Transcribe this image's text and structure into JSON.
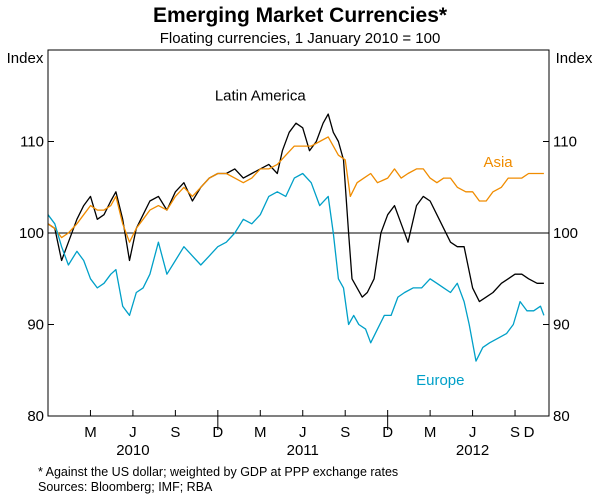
{
  "chart_data": {
    "type": "line",
    "title": "Emerging Market Currencies*",
    "subtitle": "Floating currencies, 1 January 2010 = 100",
    "ylabel_left": "Index",
    "ylabel_right": "Index",
    "ylim": [
      80,
      120
    ],
    "yticks": [
      80,
      90,
      100,
      110
    ],
    "reference_line": 100,
    "x_range": [
      2010.0,
      2012.95
    ],
    "month_ticks": [
      {
        "label": "M",
        "x": 2010.25
      },
      {
        "label": "J",
        "x": 2010.5
      },
      {
        "label": "S",
        "x": 2010.75
      },
      {
        "label": "D",
        "x": 2011.0
      },
      {
        "label": "M",
        "x": 2011.25
      },
      {
        "label": "J",
        "x": 2011.5
      },
      {
        "label": "S",
        "x": 2011.75
      },
      {
        "label": "D",
        "x": 2012.0
      },
      {
        "label": "M",
        "x": 2012.25
      },
      {
        "label": "J",
        "x": 2012.5
      },
      {
        "label": "S",
        "x": 2012.75
      },
      {
        "label": "D",
        "x": 2013.0
      }
    ],
    "year_labels": [
      {
        "label": "2010",
        "x": 2010.5
      },
      {
        "label": "2011",
        "x": 2011.5
      },
      {
        "label": "2012",
        "x": 2012.5
      }
    ],
    "series": [
      {
        "name": "Latin America",
        "color": "#000000",
        "x": [
          2010.0,
          2010.04,
          2010.08,
          2010.12,
          2010.17,
          2010.21,
          2010.25,
          2010.29,
          2010.33,
          2010.37,
          2010.4,
          2010.44,
          2010.48,
          2010.52,
          2010.56,
          2010.6,
          2010.65,
          2010.7,
          2010.75,
          2010.8,
          2010.85,
          2010.9,
          2010.95,
          2011.0,
          2011.05,
          2011.1,
          2011.15,
          2011.2,
          2011.25,
          2011.3,
          2011.35,
          2011.38,
          2011.42,
          2011.46,
          2011.5,
          2011.54,
          2011.58,
          2011.62,
          2011.65,
          2011.68,
          2011.71,
          2011.74,
          2011.77,
          2011.79,
          2011.82,
          2011.85,
          2011.88,
          2011.92,
          2011.96,
          2012.0,
          2012.04,
          2012.08,
          2012.12,
          2012.17,
          2012.21,
          2012.25,
          2012.29,
          2012.33,
          2012.37,
          2012.41,
          2012.45,
          2012.5,
          2012.54,
          2012.58,
          2012.62,
          2012.67,
          2012.71,
          2012.75,
          2012.79,
          2012.83,
          2012.88,
          2012.92
        ],
        "y": [
          101,
          100.5,
          97,
          99,
          101.5,
          103,
          104,
          101.5,
          102,
          103.5,
          104.5,
          101.5,
          97,
          100.5,
          102,
          103.5,
          104,
          102.5,
          104.5,
          105.5,
          103.5,
          105,
          106,
          106.5,
          106.5,
          107,
          106,
          106.5,
          107,
          107.5,
          106.5,
          109,
          111,
          112,
          111.5,
          109,
          110,
          112,
          113,
          111,
          110,
          108,
          100,
          95,
          94,
          93,
          93.5,
          95,
          100,
          102,
          103,
          101,
          99,
          103,
          104,
          103.5,
          102,
          100.5,
          99,
          98.5,
          98.5,
          94,
          92.5,
          93,
          93.5,
          94.5,
          95,
          95.5,
          95.5,
          95,
          94.5,
          94.5
        ]
      },
      {
        "name": "Asia",
        "color": "#f08c00",
        "x": [
          2010.0,
          2010.04,
          2010.08,
          2010.12,
          2010.17,
          2010.21,
          2010.25,
          2010.29,
          2010.33,
          2010.37,
          2010.4,
          2010.44,
          2010.48,
          2010.52,
          2010.56,
          2010.6,
          2010.65,
          2010.7,
          2010.75,
          2010.8,
          2010.85,
          2010.9,
          2010.95,
          2011.0,
          2011.05,
          2011.1,
          2011.15,
          2011.2,
          2011.25,
          2011.3,
          2011.35,
          2011.4,
          2011.45,
          2011.5,
          2011.55,
          2011.6,
          2011.65,
          2011.68,
          2011.71,
          2011.75,
          2011.78,
          2011.82,
          2011.86,
          2011.9,
          2011.94,
          2012.0,
          2012.04,
          2012.08,
          2012.12,
          2012.17,
          2012.21,
          2012.25,
          2012.29,
          2012.33,
          2012.37,
          2012.41,
          2012.46,
          2012.5,
          2012.54,
          2012.58,
          2012.62,
          2012.67,
          2012.71,
          2012.75,
          2012.79,
          2012.83,
          2012.88,
          2012.92
        ],
        "y": [
          101,
          100.5,
          99.5,
          100,
          101,
          102,
          103,
          102.5,
          102.5,
          103,
          104,
          101,
          99,
          100.5,
          101.5,
          102.5,
          103,
          102.5,
          104,
          105,
          104,
          105,
          106,
          106.5,
          106.5,
          106,
          105.5,
          106,
          107,
          107,
          107.5,
          108.5,
          109.5,
          109.5,
          109.5,
          110,
          110.5,
          109.5,
          108.5,
          108,
          104,
          105.5,
          106,
          106.5,
          105.5,
          106,
          107,
          106,
          106.5,
          107,
          107,
          106,
          105.5,
          106,
          106,
          105,
          104.5,
          104.5,
          103.5,
          103.5,
          104.5,
          105,
          106,
          106,
          106,
          106.5,
          106.5,
          106.5
        ]
      },
      {
        "name": "Europe",
        "color": "#00a0c8",
        "x": [
          2010.0,
          2010.04,
          2010.08,
          2010.12,
          2010.17,
          2010.21,
          2010.25,
          2010.29,
          2010.33,
          2010.37,
          2010.4,
          2010.44,
          2010.48,
          2010.52,
          2010.56,
          2010.6,
          2010.65,
          2010.7,
          2010.75,
          2010.8,
          2010.85,
          2010.9,
          2010.95,
          2011.0,
          2011.05,
          2011.1,
          2011.15,
          2011.2,
          2011.25,
          2011.3,
          2011.35,
          2011.4,
          2011.45,
          2011.5,
          2011.55,
          2011.6,
          2011.65,
          2011.68,
          2011.71,
          2011.74,
          2011.77,
          2011.8,
          2011.83,
          2011.87,
          2011.9,
          2011.94,
          2011.98,
          2012.02,
          2012.06,
          2012.1,
          2012.15,
          2012.2,
          2012.25,
          2012.29,
          2012.33,
          2012.37,
          2012.41,
          2012.45,
          2012.48,
          2012.52,
          2012.56,
          2012.6,
          2012.65,
          2012.7,
          2012.74,
          2012.78,
          2012.82,
          2012.86,
          2012.9,
          2012.92
        ],
        "y": [
          102,
          101,
          98.5,
          96.5,
          98,
          97,
          95,
          94,
          94.5,
          95.5,
          96,
          92,
          91,
          93.5,
          94,
          95.5,
          99,
          95.5,
          97,
          98.5,
          97.5,
          96.5,
          97.5,
          98.5,
          99,
          100,
          101.5,
          101,
          102,
          104,
          104.5,
          104,
          106,
          106.5,
          105.5,
          103,
          104,
          100,
          95,
          94,
          90,
          91,
          90,
          89.5,
          88,
          89.5,
          91,
          91,
          93,
          93.5,
          94,
          94,
          95,
          94.5,
          94,
          93.5,
          94.5,
          92.5,
          90,
          86,
          87.5,
          88,
          88.5,
          89,
          90,
          92.5,
          91.5,
          91.5,
          92,
          91
        ]
      }
    ],
    "series_labels": [
      {
        "name": "Latin America",
        "x": 2011.25,
        "y": 114.5
      },
      {
        "name": "Asia",
        "x": 2012.65,
        "y": 107.2
      },
      {
        "name": "Europe",
        "x": 2012.31,
        "y": 83.4
      }
    ],
    "footnotes": [
      "*    Against the US dollar; weighted by GDP at PPP exchange rates",
      "Sources: Bloomberg; IMF; RBA"
    ]
  }
}
